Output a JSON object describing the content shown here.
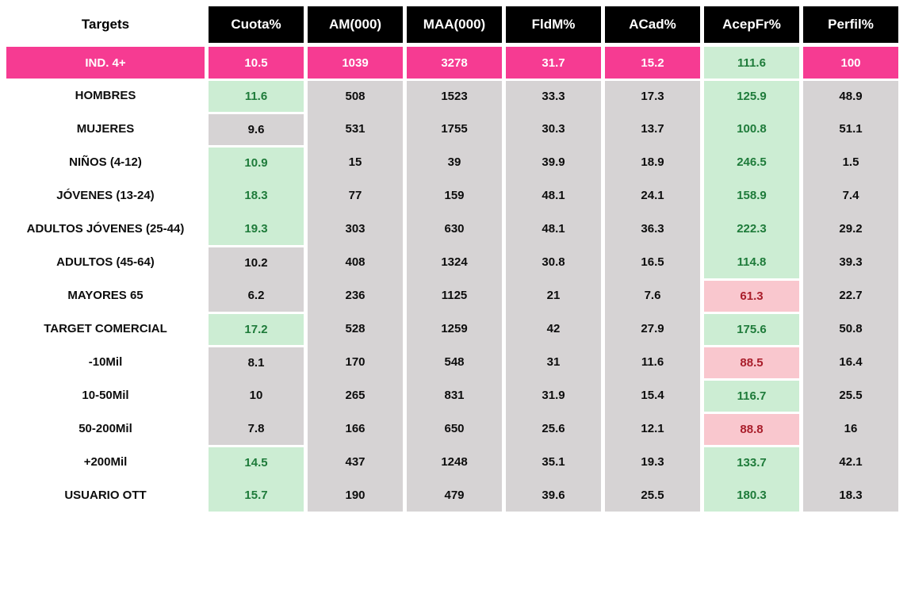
{
  "colors": {
    "header_bg": "#000000",
    "header_text": "#ffffff",
    "highlight_pink": "#F63B92",
    "cell_gray": "#D6D3D4",
    "good_bg": "#CCEDD3",
    "good_text": "#1E7B3A",
    "bad_bg": "#F9C7CE",
    "bad_text": "#A91E2B"
  },
  "chart_data": {
    "type": "table",
    "title": "Targets audience metrics table",
    "columns": [
      "Targets",
      "Cuota%",
      "AM(000)",
      "MAA(000)",
      "FldM%",
      "ACad%",
      "AcepFr%",
      "Perfil%"
    ],
    "rows": [
      {
        "label": "IND. 4+",
        "highlight": true,
        "values": [
          10.5,
          1039,
          3278,
          31.7,
          15.2,
          111.6,
          100
        ],
        "cell_colors": [
          "pink",
          "pink",
          "pink",
          "pink",
          "pink",
          "green",
          "pink"
        ]
      },
      {
        "label": "HOMBRES",
        "highlight": false,
        "values": [
          11.6,
          508,
          1523,
          33.3,
          17.3,
          125.9,
          48.9
        ],
        "cell_colors": [
          "green",
          "gray",
          "gray",
          "gray",
          "gray",
          "green",
          "gray"
        ]
      },
      {
        "label": "MUJERES",
        "highlight": false,
        "values": [
          9.6,
          531,
          1755,
          30.3,
          13.7,
          100.8,
          51.1
        ],
        "cell_colors": [
          "gray",
          "gray",
          "gray",
          "gray",
          "gray",
          "green",
          "gray"
        ]
      },
      {
        "label": "NIÑOS (4-12)",
        "highlight": false,
        "values": [
          10.9,
          15,
          39,
          39.9,
          18.9,
          246.5,
          1.5
        ],
        "cell_colors": [
          "green",
          "gray",
          "gray",
          "gray",
          "gray",
          "green",
          "gray"
        ]
      },
      {
        "label": "JÓVENES (13-24)",
        "highlight": false,
        "values": [
          18.3,
          77,
          159,
          48.1,
          24.1,
          158.9,
          7.4
        ],
        "cell_colors": [
          "green",
          "gray",
          "gray",
          "gray",
          "gray",
          "green",
          "gray"
        ]
      },
      {
        "label": "ADULTOS JÓVENES (25-44)",
        "highlight": false,
        "values": [
          19.3,
          303,
          630,
          48.1,
          36.3,
          222.3,
          29.2
        ],
        "cell_colors": [
          "green",
          "gray",
          "gray",
          "gray",
          "gray",
          "green",
          "gray"
        ]
      },
      {
        "label": "ADULTOS (45-64)",
        "highlight": false,
        "values": [
          10.2,
          408,
          1324,
          30.8,
          16.5,
          114.8,
          39.3
        ],
        "cell_colors": [
          "gray",
          "gray",
          "gray",
          "gray",
          "gray",
          "green",
          "gray"
        ]
      },
      {
        "label": "MAYORES 65",
        "highlight": false,
        "values": [
          6.2,
          236,
          1125,
          21,
          7.6,
          61.3,
          22.7
        ],
        "cell_colors": [
          "gray",
          "gray",
          "gray",
          "gray",
          "gray",
          "red",
          "gray"
        ]
      },
      {
        "label": "TARGET COMERCIAL",
        "highlight": false,
        "values": [
          17.2,
          528,
          1259,
          42,
          27.9,
          175.6,
          50.8
        ],
        "cell_colors": [
          "green",
          "gray",
          "gray",
          "gray",
          "gray",
          "green",
          "gray"
        ]
      },
      {
        "label": "-10Mil",
        "highlight": false,
        "values": [
          8.1,
          170,
          548,
          31,
          11.6,
          88.5,
          16.4
        ],
        "cell_colors": [
          "gray",
          "gray",
          "gray",
          "gray",
          "gray",
          "red",
          "gray"
        ]
      },
      {
        "label": "10-50Mil",
        "highlight": false,
        "values": [
          10,
          265,
          831,
          31.9,
          15.4,
          116.7,
          25.5
        ],
        "cell_colors": [
          "gray",
          "gray",
          "gray",
          "gray",
          "gray",
          "green",
          "gray"
        ]
      },
      {
        "label": "50-200Mil",
        "highlight": false,
        "values": [
          7.8,
          166,
          650,
          25.6,
          12.1,
          88.8,
          16
        ],
        "cell_colors": [
          "gray",
          "gray",
          "gray",
          "gray",
          "gray",
          "red",
          "gray"
        ]
      },
      {
        "label": "+200Mil",
        "highlight": false,
        "values": [
          14.5,
          437,
          1248,
          35.1,
          19.3,
          133.7,
          42.1
        ],
        "cell_colors": [
          "green",
          "gray",
          "gray",
          "gray",
          "gray",
          "green",
          "gray"
        ]
      },
      {
        "label": "USUARIO OTT",
        "highlight": false,
        "values": [
          15.7,
          190,
          479,
          39.6,
          25.5,
          180.3,
          18.3
        ],
        "cell_colors": [
          "green",
          "gray",
          "gray",
          "gray",
          "gray",
          "green",
          "gray"
        ]
      }
    ]
  }
}
